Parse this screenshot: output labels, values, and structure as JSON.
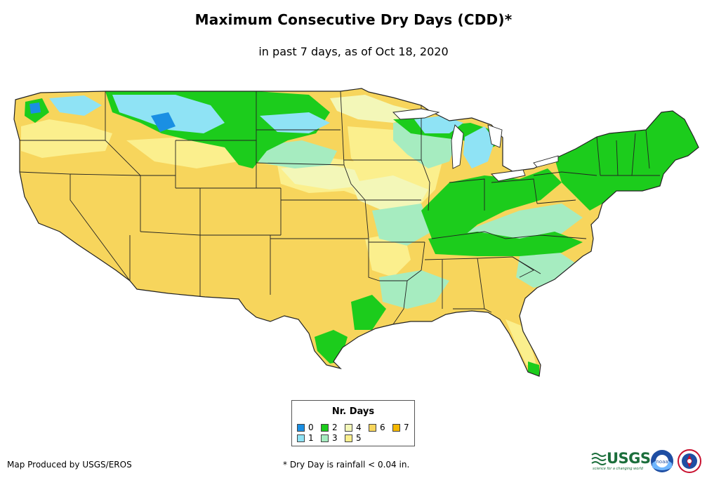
{
  "title": "Maximum Consecutive Dry Days (CDD)*",
  "subtitle": "in past 7 days, as of Oct 18, 2020",
  "legend": {
    "title": "Nr. Days",
    "items": [
      {
        "label": "0",
        "color": "#1a8fe3"
      },
      {
        "label": "1",
        "color": "#8fe3f5"
      },
      {
        "label": "2",
        "color": "#1ccc1c"
      },
      {
        "label": "3",
        "color": "#a6ecc0"
      },
      {
        "label": "4",
        "color": "#f3f7b8"
      },
      {
        "label": "5",
        "color": "#fbef8d"
      },
      {
        "label": "6",
        "color": "#f7d55c"
      },
      {
        "label": "7",
        "color": "#f5b800"
      }
    ]
  },
  "footer": {
    "credit": "Map Produced by USGS/EROS",
    "note": "* Dry Day is rainfall < 0.04 in."
  },
  "logos": {
    "usgs": "USGS",
    "usgs_tagline": "science for a changing world",
    "noaa": "noaa"
  }
}
